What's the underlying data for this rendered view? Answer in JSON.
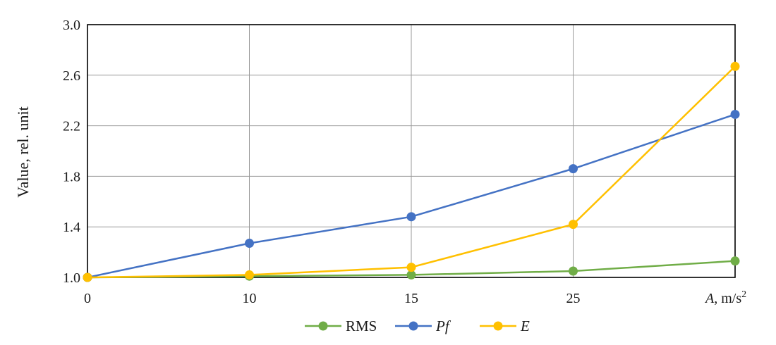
{
  "chart_data": {
    "type": "line",
    "ylabel": "Value, rel. unit",
    "xlabel": "A, m/s²",
    "xlabel_parts": {
      "symbol": "A",
      "unit": ", m/s",
      "exponent": "2"
    },
    "categories": [
      "0",
      "10",
      "15",
      "25",
      "A, m/s²"
    ],
    "ylim": [
      1.0,
      3.0
    ],
    "yticks": [
      "1.0",
      "1.4",
      "1.8",
      "2.2",
      "2.6",
      "3.0"
    ],
    "ytick_values": [
      1.0,
      1.4,
      1.8,
      2.2,
      2.6,
      3.0
    ],
    "grid": true,
    "legend_position": "bottom",
    "series": [
      {
        "name": "RMS",
        "italic": false,
        "color": "#70ad47",
        "values": [
          1.0,
          1.01,
          1.02,
          1.05,
          1.13
        ]
      },
      {
        "name": "Pf",
        "italic": true,
        "color": "#4472c4",
        "values": [
          1.0,
          1.27,
          1.48,
          1.86,
          2.29
        ]
      },
      {
        "name": "E",
        "italic": true,
        "color": "#ffc000",
        "values": [
          1.0,
          1.02,
          1.08,
          1.42,
          2.67
        ]
      }
    ]
  }
}
